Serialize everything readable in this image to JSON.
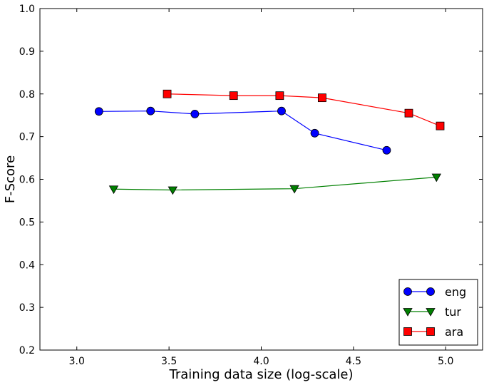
{
  "chart_data": {
    "type": "line",
    "title": "",
    "xlabel": "Training data size (log-scale)",
    "ylabel": "F-Score",
    "xlim": [
      2.8,
      5.2
    ],
    "ylim": [
      0.2,
      1.0
    ],
    "xticks": [
      3.0,
      3.5,
      4.0,
      4.5,
      5.0
    ],
    "xtick_labels": [
      "3.0",
      "3.5",
      "4.0",
      "4.5",
      "5.0"
    ],
    "yticks": [
      0.2,
      0.3,
      0.4,
      0.5,
      0.6,
      0.7,
      0.8,
      0.9,
      1.0
    ],
    "ytick_labels": [
      "0.2",
      "0.3",
      "0.4",
      "0.5",
      "0.6",
      "0.7",
      "0.8",
      "0.9",
      "1.0"
    ],
    "grid": false,
    "legend_position": "bottom-right",
    "series": [
      {
        "name": "eng",
        "color": "#0000ff",
        "marker": "circle",
        "x": [
          3.12,
          3.4,
          3.64,
          4.11,
          4.29,
          4.68
        ],
        "y": [
          0.759,
          0.76,
          0.753,
          0.76,
          0.708,
          0.668
        ]
      },
      {
        "name": "tur",
        "color": "#008000",
        "marker": "triangle-down",
        "x": [
          3.2,
          3.52,
          4.18,
          4.95
        ],
        "y": [
          0.577,
          0.575,
          0.578,
          0.605
        ]
      },
      {
        "name": "ara",
        "color": "#ff0000",
        "marker": "square",
        "x": [
          3.49,
          3.85,
          4.1,
          4.33,
          4.8,
          4.97
        ],
        "y": [
          0.8,
          0.796,
          0.796,
          0.791,
          0.755,
          0.725
        ]
      }
    ]
  }
}
